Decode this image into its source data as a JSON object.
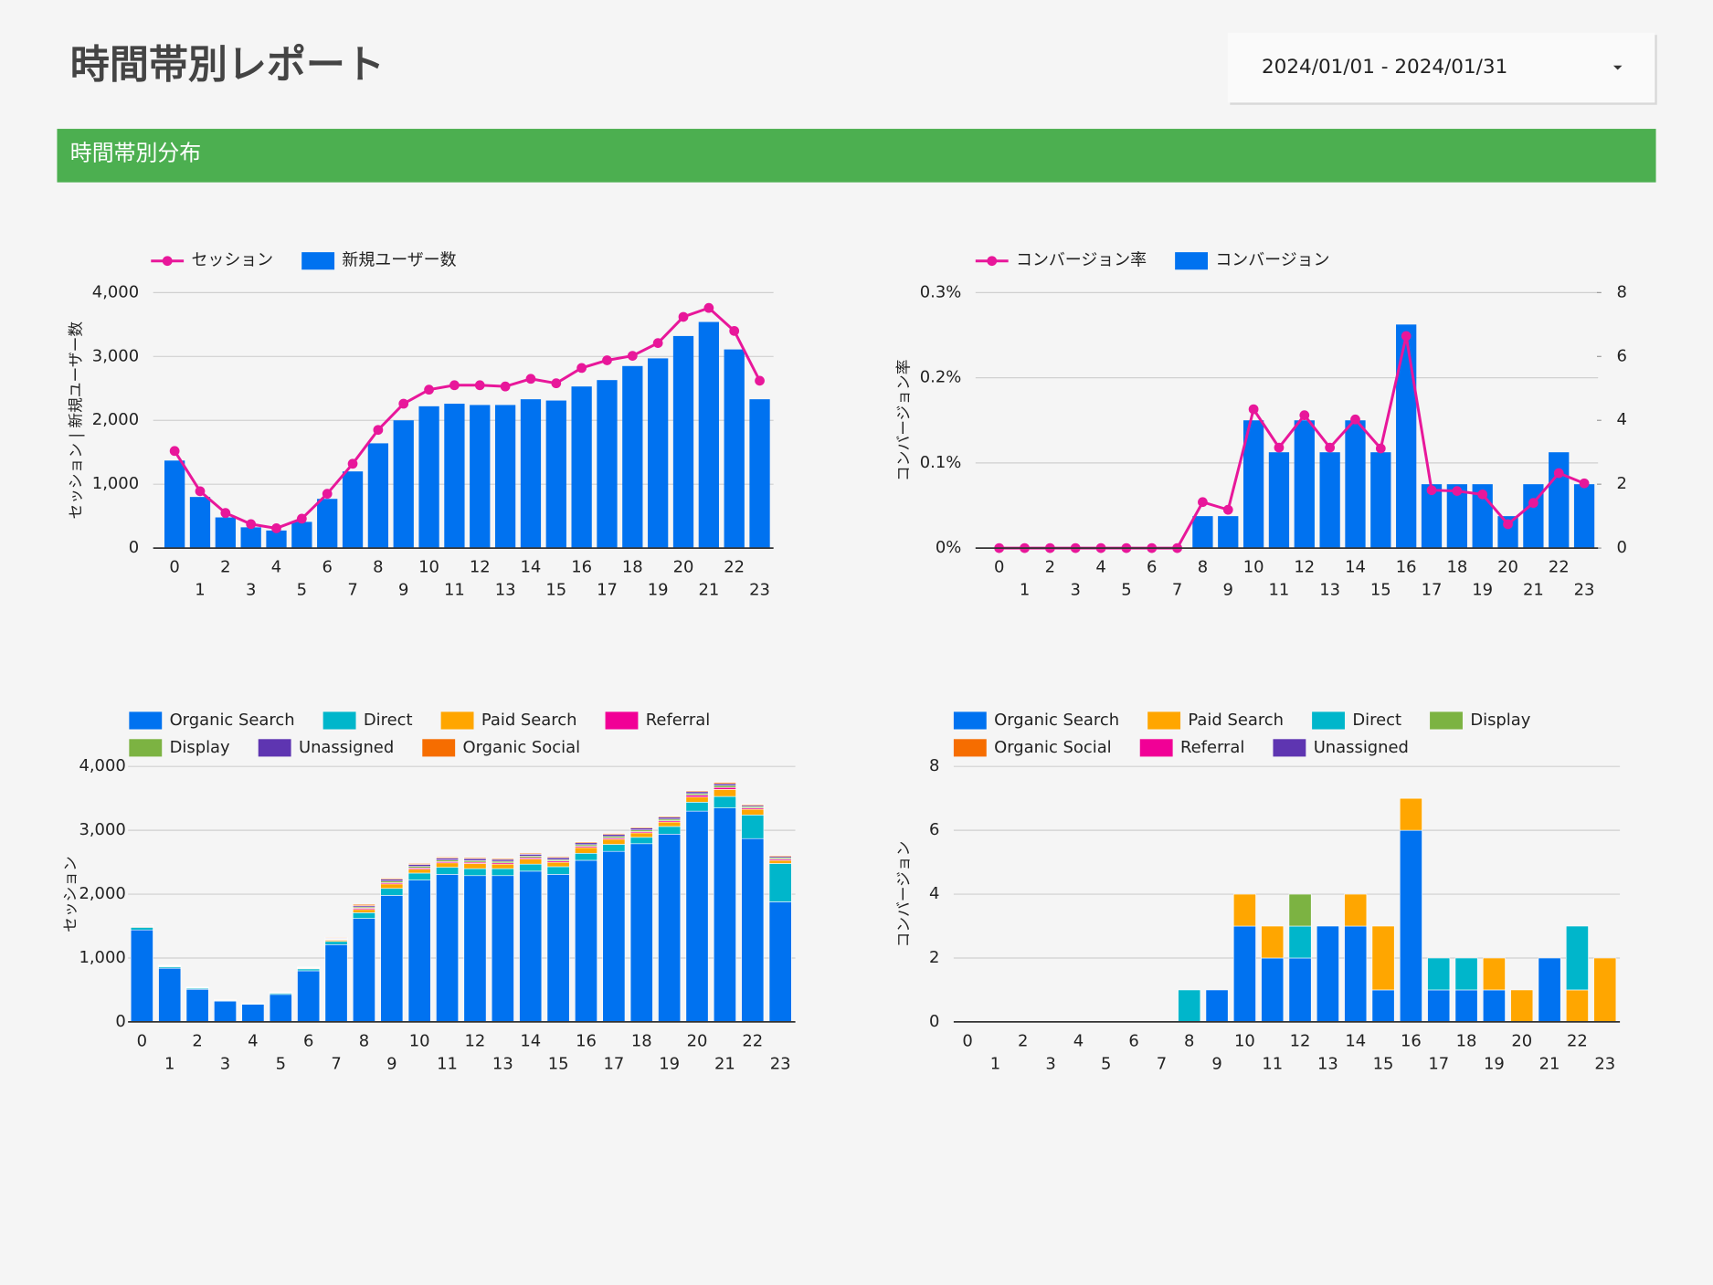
{
  "header": {
    "title": "時間帯別レポート",
    "date_range": "2024/01/01 - 2024/01/31"
  },
  "section": {
    "title": "時間帯別分布"
  },
  "chart_data": [
    {
      "type": "combo",
      "y_label": "セッション | 新規ユーザー数",
      "categories": [
        0,
        1,
        2,
        3,
        4,
        5,
        6,
        7,
        8,
        9,
        10,
        11,
        12,
        13,
        14,
        15,
        16,
        17,
        18,
        19,
        20,
        21,
        22,
        23
      ],
      "series": [
        {
          "name": "セッション",
          "type": "line",
          "color": "#e8179a",
          "values": [
            1520,
            890,
            550,
            375,
            310,
            460,
            850,
            1320,
            1850,
            2260,
            2480,
            2550,
            2550,
            2530,
            2650,
            2580,
            2820,
            2940,
            3010,
            3210,
            3620,
            3760,
            3400,
            2620
          ]
        },
        {
          "name": "新規ユーザー数",
          "type": "bar",
          "color": "#0072f0",
          "values": [
            1370,
            800,
            480,
            325,
            275,
            410,
            770,
            1200,
            1640,
            2000,
            2220,
            2260,
            2240,
            2240,
            2330,
            2310,
            2530,
            2630,
            2850,
            2970,
            3320,
            3540,
            3110,
            2330
          ]
        }
      ],
      "ylim": [
        0,
        4000
      ],
      "yticks": [
        0,
        {
          "value": 1000,
          "label": "1,000"
        },
        {
          "value": 2000,
          "label": "2,000"
        },
        {
          "value": 3000,
          "label": "3,000"
        },
        {
          "value": 4000,
          "label": "4,000"
        }
      ],
      "grid": true
    },
    {
      "type": "combo",
      "y_label": "コンバージョン率",
      "categories": [
        0,
        1,
        2,
        3,
        4,
        5,
        6,
        7,
        8,
        9,
        10,
        11,
        12,
        13,
        14,
        15,
        16,
        17,
        18,
        19,
        20,
        21,
        22,
        23
      ],
      "series": [
        {
          "name": "コンバージョン率",
          "type": "line",
          "color": "#e8179a",
          "values": [
            0,
            0,
            0,
            0,
            0,
            0,
            0,
            0,
            0.054,
            0.045,
            0.163,
            0.118,
            0.156,
            0.118,
            0.151,
            0.117,
            0.249,
            0.068,
            0.067,
            0.063,
            0.028,
            0.053,
            0.088,
            0.076
          ]
        },
        {
          "name": "コンバージョン",
          "type": "bar",
          "axis": "y2",
          "color": "#0072f0",
          "values": [
            0,
            0,
            0,
            0,
            0,
            0,
            0,
            0,
            1,
            1,
            4,
            3,
            4,
            3,
            4,
            3,
            7,
            2,
            2,
            2,
            1,
            2,
            3,
            2
          ]
        }
      ],
      "ylim": [
        0,
        0.3
      ],
      "yticks": [
        {
          "value": 0,
          "label": "0%"
        },
        {
          "value": 0.1,
          "label": "0.1%"
        },
        {
          "value": 0.2,
          "label": "0.2%"
        },
        {
          "value": 0.3,
          "label": "0.3%"
        }
      ],
      "y2lim": [
        0,
        8
      ],
      "y2ticks": [
        0,
        2,
        4,
        6,
        8
      ],
      "grid": true
    },
    {
      "type": "stacked_bar",
      "y_label": "セッション",
      "categories": [
        0,
        1,
        2,
        3,
        4,
        5,
        6,
        7,
        8,
        9,
        10,
        11,
        12,
        13,
        14,
        15,
        16,
        17,
        18,
        19,
        20,
        21,
        22,
        23
      ],
      "series": [
        {
          "name": "Organic Search",
          "color": "#0072f0",
          "values": [
            1440,
            840,
            510,
            325,
            275,
            430,
            800,
            1210,
            1620,
            1980,
            2220,
            2310,
            2290,
            2290,
            2360,
            2310,
            2530,
            2670,
            2790,
            2940,
            3300,
            3350,
            2870,
            1880
          ]
        },
        {
          "name": "Direct",
          "color": "#00b6cb",
          "values": [
            40,
            20,
            15,
            10,
            10,
            20,
            30,
            50,
            90,
            110,
            110,
            110,
            110,
            110,
            110,
            120,
            110,
            110,
            100,
            120,
            140,
            180,
            370,
            600
          ]
        },
        {
          "name": "Paid Search",
          "color": "#ffa600",
          "values": [
            10,
            10,
            5,
            5,
            5,
            5,
            10,
            20,
            50,
            70,
            60,
            70,
            80,
            70,
            80,
            70,
            90,
            80,
            70,
            70,
            80,
            110,
            90,
            50
          ]
        },
        {
          "name": "Referral",
          "color": "#f10096",
          "values": [
            10,
            5,
            5,
            3,
            3,
            5,
            5,
            10,
            20,
            20,
            20,
            20,
            20,
            20,
            20,
            20,
            20,
            20,
            20,
            20,
            30,
            30,
            20,
            20
          ]
        },
        {
          "name": "Display",
          "color": "#7cb342",
          "values": [
            5,
            5,
            3,
            2,
            2,
            3,
            5,
            10,
            20,
            25,
            25,
            25,
            25,
            25,
            25,
            20,
            25,
            25,
            25,
            25,
            25,
            30,
            20,
            20
          ]
        },
        {
          "name": "Unassigned",
          "color": "#5e35b1",
          "values": [
            10,
            5,
            5,
            3,
            3,
            5,
            5,
            10,
            20,
            30,
            30,
            30,
            30,
            30,
            30,
            30,
            30,
            30,
            30,
            30,
            30,
            30,
            20,
            20
          ]
        },
        {
          "name": "Organic Social",
          "color": "#f66d00",
          "values": [
            5,
            5,
            2,
            2,
            2,
            3,
            5,
            10,
            20,
            15,
            15,
            15,
            15,
            15,
            15,
            15,
            15,
            15,
            15,
            15,
            15,
            20,
            15,
            15
          ]
        }
      ],
      "ylim": [
        0,
        4000
      ],
      "yticks": [
        0,
        {
          "value": 1000,
          "label": "1,000"
        },
        {
          "value": 2000,
          "label": "2,000"
        },
        {
          "value": 3000,
          "label": "3,000"
        },
        {
          "value": 4000,
          "label": "4,000"
        }
      ],
      "grid": true
    },
    {
      "type": "stacked_bar",
      "y_label": "コンバージョン",
      "categories": [
        0,
        1,
        2,
        3,
        4,
        5,
        6,
        7,
        8,
        9,
        10,
        11,
        12,
        13,
        14,
        15,
        16,
        17,
        18,
        19,
        20,
        21,
        22,
        23
      ],
      "series": [
        {
          "name": "Organic Search",
          "color": "#0072f0",
          "values": [
            0,
            0,
            0,
            0,
            0,
            0,
            0,
            0,
            0,
            1,
            3,
            2,
            2,
            3,
            3,
            1,
            6,
            1,
            1,
            1,
            0,
            2,
            0,
            0
          ]
        },
        {
          "name": "Paid Search",
          "color": "#ffa600",
          "values": [
            0,
            0,
            0,
            0,
            0,
            0,
            0,
            0,
            0,
            0,
            1,
            1,
            0,
            0,
            1,
            2,
            1,
            0,
            0,
            1,
            1,
            0,
            1,
            2
          ]
        },
        {
          "name": "Direct",
          "color": "#00b6cb",
          "values": [
            0,
            0,
            0,
            0,
            0,
            0,
            0,
            0,
            1,
            0,
            0,
            0,
            1,
            0,
            0,
            0,
            0,
            1,
            1,
            0,
            0,
            0,
            2,
            0
          ]
        },
        {
          "name": "Display",
          "color": "#7cb342",
          "values": [
            0,
            0,
            0,
            0,
            0,
            0,
            0,
            0,
            0,
            0,
            0,
            0,
            1,
            0,
            0,
            0,
            0,
            0,
            0,
            0,
            0,
            0,
            0,
            0
          ]
        },
        {
          "name": "Organic Social",
          "color": "#f66d00",
          "values": [
            0,
            0,
            0,
            0,
            0,
            0,
            0,
            0,
            0,
            0,
            0,
            0,
            0,
            0,
            0,
            0,
            0,
            0,
            0,
            0,
            0,
            0,
            0,
            0
          ]
        },
        {
          "name": "Referral",
          "color": "#f10096",
          "values": [
            0,
            0,
            0,
            0,
            0,
            0,
            0,
            0,
            0,
            0,
            0,
            0,
            0,
            0,
            0,
            0,
            0,
            0,
            0,
            0,
            0,
            0,
            0,
            0
          ]
        },
        {
          "name": "Unassigned",
          "color": "#5e35b1",
          "values": [
            0,
            0,
            0,
            0,
            0,
            0,
            0,
            0,
            0,
            0,
            0,
            0,
            0,
            0,
            0,
            0,
            0,
            0,
            0,
            0,
            0,
            0,
            0,
            0
          ]
        }
      ],
      "ylim": [
        0,
        8
      ],
      "yticks": [
        0,
        2,
        4,
        6,
        8
      ],
      "grid": true
    }
  ]
}
